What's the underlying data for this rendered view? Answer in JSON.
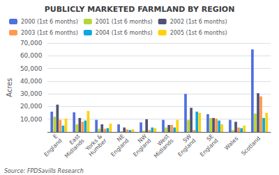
{
  "chart_data": {
    "type": "bar",
    "title": "PUBLICLY MARKETED FARMLAND BY REGION",
    "ylabel": "Acres",
    "annotations": [
      "Source: FPDSavills Research"
    ],
    "categories": [
      "E\nEngland",
      "East\nMidlands",
      "Yorks &\nHumber",
      "NE\nEngland",
      "NW\nEngland",
      "West\nMidlands",
      "SW\nEngland",
      "SE\nEngland",
      "Wales",
      "Scotland"
    ],
    "series": [
      {
        "name": "2000 (1st 6 months)",
        "values": [
          16000,
          15500,
          9500,
          6000,
          7500,
          9500,
          30000,
          14000,
          9500,
          65000
        ]
      },
      {
        "name": "2001 (1st 6 months)",
        "values": [
          12000,
          6000,
          2500,
          500,
          1000,
          3500,
          9500,
          11000,
          1500,
          14500
        ]
      },
      {
        "name": "2002 (1st 6 months)",
        "values": [
          21500,
          11000,
          6000,
          3500,
          10000,
          5500,
          19000,
          11000,
          8000,
          30500
        ]
      },
      {
        "name": "2003 (1st 6 months)",
        "values": [
          9500,
          8000,
          2500,
          2000,
          1500,
          5500,
          1500,
          10500,
          3500,
          28000
        ]
      },
      {
        "name": "2004 (1st 6 months)",
        "values": [
          5000,
          9000,
          3000,
          1500,
          3500,
          3500,
          16000,
          9000,
          3000,
          11000
        ]
      },
      {
        "name": "2005 (1st 6 months)",
        "values": [
          10500,
          16500,
          6500,
          2000,
          3000,
          9500,
          15000,
          6000,
          5000,
          15000
        ]
      }
    ],
    "ylim": [
      0,
      70000
    ],
    "yticks": [
      {
        "value": 0,
        "label": ""
      },
      {
        "value": 10000,
        "label": "10,000"
      },
      {
        "value": 20000,
        "label": "20,000"
      },
      {
        "value": 30000,
        "label": "30,000"
      },
      {
        "value": 40000,
        "label": "40,000"
      },
      {
        "value": 50000,
        "label": "50,000"
      },
      {
        "value": 60000,
        "label": "60,000"
      },
      {
        "value": 70000,
        "label": "70,000"
      }
    ],
    "grid": true,
    "legend": "upper left"
  }
}
